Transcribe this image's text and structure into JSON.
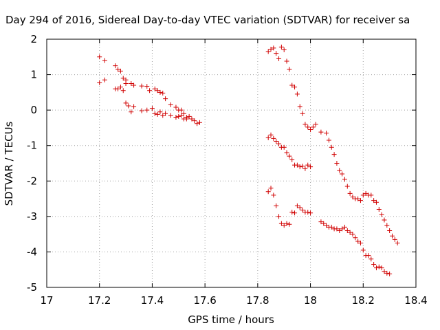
{
  "chart_data": {
    "type": "scatter",
    "title": "Day 294 of 2016, Sidereal Day-to-day VTEC variation (SDTVAR) for receiver sa",
    "xlabel": "GPS time / hours",
    "ylabel": "SDTVAR / TECUs",
    "xlim": [
      17,
      18.4
    ],
    "ylim": [
      -5,
      2
    ],
    "xticks": [
      17,
      17.2,
      17.4,
      17.6,
      17.8,
      18,
      18.2,
      18.4
    ],
    "xtick_labels": [
      "17",
      "17.2",
      "17.4",
      "17.6",
      "17.8",
      "18",
      "18.2",
      "18.4"
    ],
    "yticks": [
      -5,
      -4,
      -3,
      -2,
      -1,
      0,
      1,
      2
    ],
    "ytick_labels": [
      "-5",
      "-4",
      "-3",
      "-2",
      "-1",
      "0",
      "1",
      "2"
    ],
    "grid": true,
    "marker": "+",
    "color": "#d00000",
    "points": [
      [
        17.2,
        1.5
      ],
      [
        17.22,
        1.4
      ],
      [
        17.26,
        1.25
      ],
      [
        17.27,
        1.15
      ],
      [
        17.28,
        1.1
      ],
      [
        17.29,
        0.9
      ],
      [
        17.3,
        0.85
      ],
      [
        17.3,
        0.75
      ],
      [
        17.32,
        0.75
      ],
      [
        17.33,
        0.7
      ],
      [
        17.2,
        0.77
      ],
      [
        17.22,
        0.85
      ],
      [
        17.26,
        0.6
      ],
      [
        17.27,
        0.6
      ],
      [
        17.28,
        0.65
      ],
      [
        17.29,
        0.55
      ],
      [
        17.3,
        0.2
      ],
      [
        17.31,
        0.12
      ],
      [
        17.32,
        -0.05
      ],
      [
        17.33,
        0.1
      ],
      [
        17.36,
        0.68
      ],
      [
        17.38,
        0.67
      ],
      [
        17.39,
        0.55
      ],
      [
        17.41,
        0.6
      ],
      [
        17.42,
        0.55
      ],
      [
        17.43,
        0.5
      ],
      [
        17.44,
        0.48
      ],
      [
        17.45,
        0.32
      ],
      [
        17.47,
        0.15
      ],
      [
        17.49,
        0.08
      ],
      [
        17.5,
        0.0
      ],
      [
        17.51,
        0.0
      ],
      [
        17.52,
        -0.1
      ],
      [
        17.53,
        -0.2
      ],
      [
        17.54,
        -0.18
      ],
      [
        17.55,
        -0.25
      ],
      [
        17.56,
        -0.3
      ],
      [
        17.57,
        -0.38
      ],
      [
        17.58,
        -0.35
      ],
      [
        17.36,
        -0.02
      ],
      [
        17.38,
        0.0
      ],
      [
        17.4,
        0.05
      ],
      [
        17.41,
        -0.1
      ],
      [
        17.42,
        -0.12
      ],
      [
        17.43,
        -0.05
      ],
      [
        17.44,
        -0.15
      ],
      [
        17.45,
        -0.1
      ],
      [
        17.47,
        -0.15
      ],
      [
        17.49,
        -0.2
      ],
      [
        17.5,
        -0.18
      ],
      [
        17.51,
        -0.15
      ],
      [
        17.52,
        -0.25
      ],
      [
        17.53,
        -0.25
      ],
      [
        17.84,
        1.65
      ],
      [
        17.85,
        1.72
      ],
      [
        17.86,
        1.75
      ],
      [
        17.87,
        1.6
      ],
      [
        17.88,
        1.45
      ],
      [
        17.89,
        1.78
      ],
      [
        17.9,
        1.7
      ],
      [
        17.91,
        1.38
      ],
      [
        17.92,
        1.15
      ],
      [
        17.93,
        0.7
      ],
      [
        17.94,
        0.65
      ],
      [
        17.95,
        0.45
      ],
      [
        17.96,
        0.1
      ],
      [
        17.97,
        -0.1
      ],
      [
        17.98,
        -0.4
      ],
      [
        17.99,
        -0.48
      ],
      [
        18.0,
        -0.55
      ],
      [
        18.01,
        -0.48
      ],
      [
        18.02,
        -0.4
      ],
      [
        18.04,
        -0.62
      ],
      [
        18.06,
        -0.65
      ],
      [
        18.07,
        -0.85
      ],
      [
        18.08,
        -1.05
      ],
      [
        18.09,
        -1.25
      ],
      [
        18.1,
        -1.5
      ],
      [
        18.11,
        -1.7
      ],
      [
        18.12,
        -1.8
      ],
      [
        18.13,
        -1.95
      ],
      [
        18.14,
        -2.15
      ],
      [
        18.15,
        -2.35
      ],
      [
        18.16,
        -2.45
      ],
      [
        18.17,
        -2.5
      ],
      [
        18.18,
        -2.5
      ],
      [
        18.19,
        -2.55
      ],
      [
        18.2,
        -2.4
      ],
      [
        18.21,
        -2.35
      ],
      [
        18.22,
        -2.4
      ],
      [
        18.23,
        -2.4
      ],
      [
        18.24,
        -2.55
      ],
      [
        18.25,
        -2.6
      ],
      [
        18.26,
        -2.8
      ],
      [
        18.27,
        -2.95
      ],
      [
        18.28,
        -3.1
      ],
      [
        18.29,
        -3.25
      ],
      [
        18.3,
        -3.4
      ],
      [
        18.31,
        -3.55
      ],
      [
        18.32,
        -3.65
      ],
      [
        18.33,
        -3.75
      ],
      [
        17.84,
        -0.78
      ],
      [
        17.85,
        -0.7
      ],
      [
        17.86,
        -0.8
      ],
      [
        17.87,
        -0.88
      ],
      [
        17.88,
        -0.95
      ],
      [
        17.89,
        -1.05
      ],
      [
        17.9,
        -1.05
      ],
      [
        17.91,
        -1.2
      ],
      [
        17.92,
        -1.3
      ],
      [
        17.93,
        -1.4
      ],
      [
        17.94,
        -1.55
      ],
      [
        17.95,
        -1.55
      ],
      [
        17.96,
        -1.6
      ],
      [
        17.97,
        -1.58
      ],
      [
        17.98,
        -1.65
      ],
      [
        17.99,
        -1.55
      ],
      [
        18.0,
        -1.6
      ],
      [
        17.84,
        -2.3
      ],
      [
        17.85,
        -2.2
      ],
      [
        17.86,
        -2.4
      ],
      [
        17.87,
        -2.7
      ],
      [
        17.88,
        -3.0
      ],
      [
        17.89,
        -3.2
      ],
      [
        17.9,
        -3.25
      ],
      [
        17.91,
        -3.2
      ],
      [
        17.92,
        -3.22
      ],
      [
        17.93,
        -2.88
      ],
      [
        17.94,
        -2.9
      ],
      [
        17.95,
        -2.7
      ],
      [
        17.96,
        -2.75
      ],
      [
        17.97,
        -2.82
      ],
      [
        17.98,
        -2.88
      ],
      [
        17.99,
        -2.88
      ],
      [
        18.0,
        -2.9
      ],
      [
        18.04,
        -3.15
      ],
      [
        18.05,
        -3.2
      ],
      [
        18.06,
        -3.25
      ],
      [
        18.07,
        -3.3
      ],
      [
        18.08,
        -3.3
      ],
      [
        18.09,
        -3.35
      ],
      [
        18.1,
        -3.35
      ],
      [
        18.11,
        -3.4
      ],
      [
        18.12,
        -3.35
      ],
      [
        18.13,
        -3.3
      ],
      [
        18.14,
        -3.4
      ],
      [
        18.15,
        -3.45
      ],
      [
        18.16,
        -3.5
      ],
      [
        18.17,
        -3.6
      ],
      [
        18.18,
        -3.7
      ],
      [
        18.19,
        -3.75
      ],
      [
        18.2,
        -3.95
      ],
      [
        18.21,
        -4.1
      ],
      [
        18.22,
        -4.1
      ],
      [
        18.23,
        -4.2
      ],
      [
        18.24,
        -4.35
      ],
      [
        18.25,
        -4.45
      ],
      [
        18.26,
        -4.42
      ],
      [
        18.27,
        -4.45
      ],
      [
        18.28,
        -4.55
      ],
      [
        18.29,
        -4.6
      ],
      [
        18.3,
        -4.62
      ]
    ]
  }
}
